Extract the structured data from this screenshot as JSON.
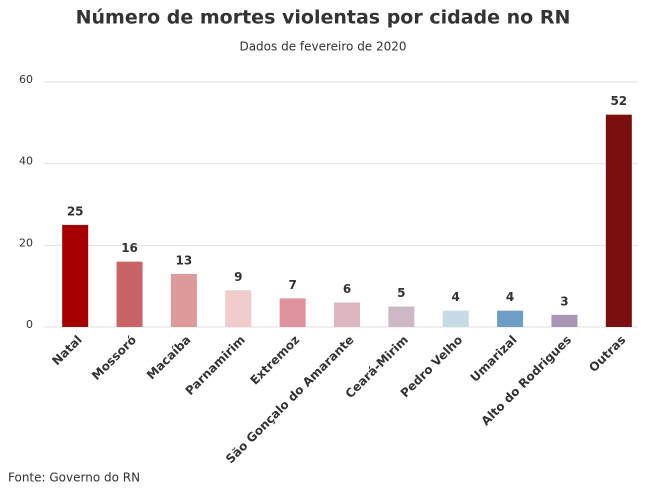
{
  "chart_data": {
    "type": "bar",
    "title": "Número de mortes violentas por cidade no RN",
    "subtitle": "Dados de fevereiro de 2020",
    "source": "Fonte: Governo do RN",
    "categories": [
      "Natal",
      "Mossoró",
      "Macaíba",
      "Parnamirim",
      "Extremoz",
      "São Gonçalo do Amarante",
      "Ceará-Mirim",
      "Pedro Velho",
      "Umarizal",
      "Alto do Rodrigues",
      "Outras"
    ],
    "values": [
      25,
      16,
      13,
      9,
      7,
      6,
      5,
      4,
      4,
      3,
      52
    ],
    "colors": [
      "#a50000",
      "#c96466",
      "#de9a9b",
      "#f1cccd",
      "#de929e",
      "#ddb6bf",
      "#cdb8c6",
      "#c7dbe6",
      "#6d9fc4",
      "#a995b4",
      "#7b0e0e"
    ],
    "ylim": [
      0,
      60
    ],
    "yticks": [
      0,
      20,
      40,
      60
    ],
    "grid": true
  }
}
